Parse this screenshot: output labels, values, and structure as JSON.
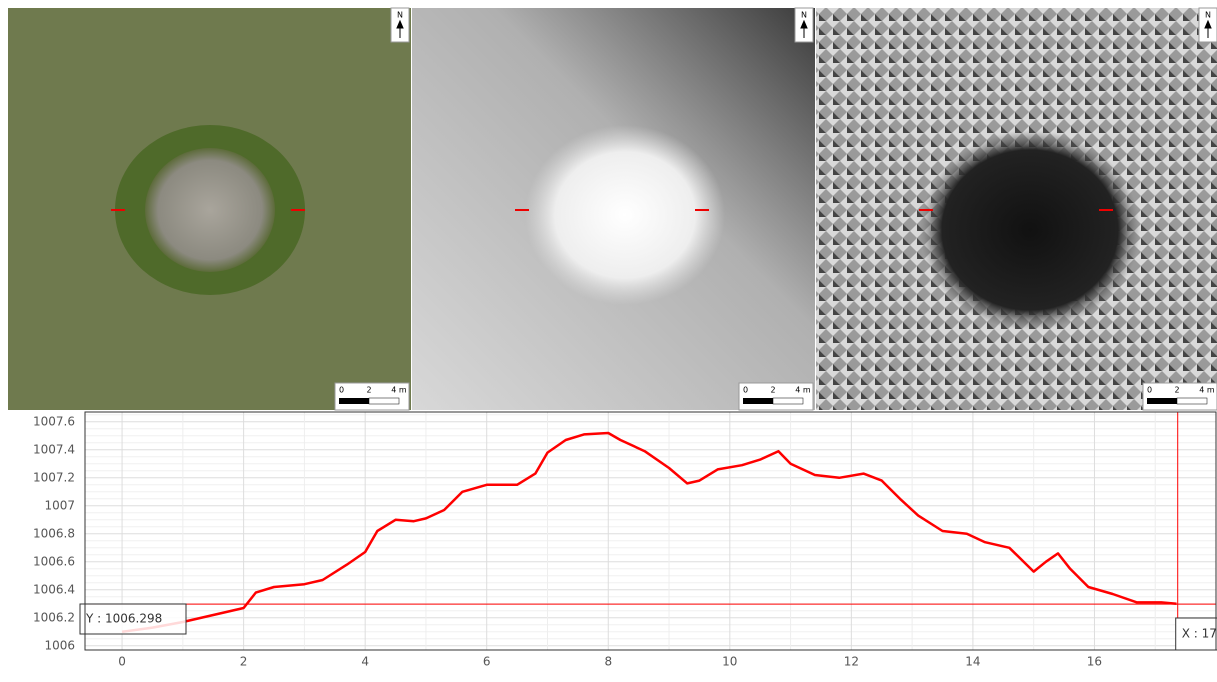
{
  "panels": [
    {
      "north": "N",
      "scale_labels": [
        "0",
        "2",
        "4 m"
      ]
    },
    {
      "north": "N",
      "scale_labels": [
        "0",
        "2",
        "4 m"
      ]
    },
    {
      "north": "N",
      "scale_labels": [
        "0",
        "2",
        "4 m"
      ]
    }
  ],
  "chart_data": {
    "type": "line",
    "x": [
      0,
      0.5,
      1,
      1.5,
      2,
      2.2,
      2.5,
      3,
      3.3,
      3.7,
      4,
      4.2,
      4.5,
      4.8,
      5,
      5.3,
      5.6,
      6,
      6.5,
      6.8,
      7,
      7.3,
      7.6,
      8,
      8.2,
      8.6,
      9,
      9.3,
      9.5,
      9.8,
      10.2,
      10.5,
      10.8,
      11,
      11.4,
      11.8,
      12.2,
      12.5,
      12.8,
      13.1,
      13.5,
      13.9,
      14.2,
      14.6,
      15,
      15.2,
      15.4,
      15.6,
      15.9,
      16.3,
      16.7,
      17.1,
      17.35
    ],
    "series": [
      {
        "color": "#ff0000",
        "values": [
          1006.1,
          1006.13,
          1006.17,
          1006.22,
          1006.27,
          1006.38,
          1006.42,
          1006.44,
          1006.47,
          1006.58,
          1006.67,
          1006.82,
          1006.9,
          1006.89,
          1006.91,
          1006.97,
          1007.1,
          1007.15,
          1007.15,
          1007.23,
          1007.38,
          1007.47,
          1007.51,
          1007.52,
          1007.47,
          1007.39,
          1007.27,
          1007.16,
          1007.18,
          1007.26,
          1007.29,
          1007.33,
          1007.39,
          1007.3,
          1007.22,
          1007.2,
          1007.23,
          1007.18,
          1007.05,
          1006.93,
          1006.82,
          1006.8,
          1006.74,
          1006.7,
          1006.53,
          1006.6,
          1006.66,
          1006.55,
          1006.42,
          1006.37,
          1006.31,
          1006.31,
          1006.3
        ]
      }
    ],
    "xlim": [
      -0.61,
      18.0
    ],
    "ylim": [
      1005.97,
      1007.67
    ],
    "xticks": [
      0,
      2,
      4,
      6,
      8,
      10,
      12,
      14,
      16
    ],
    "yticks": [
      1006,
      1006.2,
      1006.4,
      1006.6,
      1006.8,
      1007,
      1007.2,
      1007.4,
      1007.6
    ],
    "grid": true,
    "cursor": {
      "x": 17.37,
      "y": 1006.298,
      "x_label": "X : 17",
      "y_label": "Y : 1006.298"
    }
  }
}
